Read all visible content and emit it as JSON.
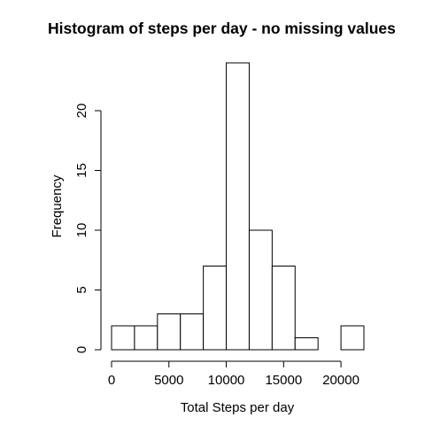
{
  "chart_data": {
    "type": "bar",
    "title": "Histogram of steps per day - no missing values",
    "xlabel": "Total Steps per day",
    "ylabel": "Frequency",
    "bins": [
      {
        "start": 0,
        "end": 2000,
        "count": 2
      },
      {
        "start": 2000,
        "end": 4000,
        "count": 2
      },
      {
        "start": 4000,
        "end": 6000,
        "count": 3
      },
      {
        "start": 6000,
        "end": 8000,
        "count": 3
      },
      {
        "start": 8000,
        "end": 10000,
        "count": 7
      },
      {
        "start": 10000,
        "end": 12000,
        "count": 24
      },
      {
        "start": 12000,
        "end": 14000,
        "count": 10
      },
      {
        "start": 14000,
        "end": 16000,
        "count": 7
      },
      {
        "start": 16000,
        "end": 18000,
        "count": 1
      },
      {
        "start": 18000,
        "end": 20000,
        "count": 0
      },
      {
        "start": 20000,
        "end": 22000,
        "count": 2
      }
    ],
    "xlim": [
      0,
      22000
    ],
    "ylim": [
      0,
      24
    ],
    "xticks": [
      0,
      5000,
      10000,
      15000,
      20000
    ],
    "yticks": [
      0,
      5,
      10,
      15,
      20
    ],
    "grid": false,
    "legend": false
  }
}
